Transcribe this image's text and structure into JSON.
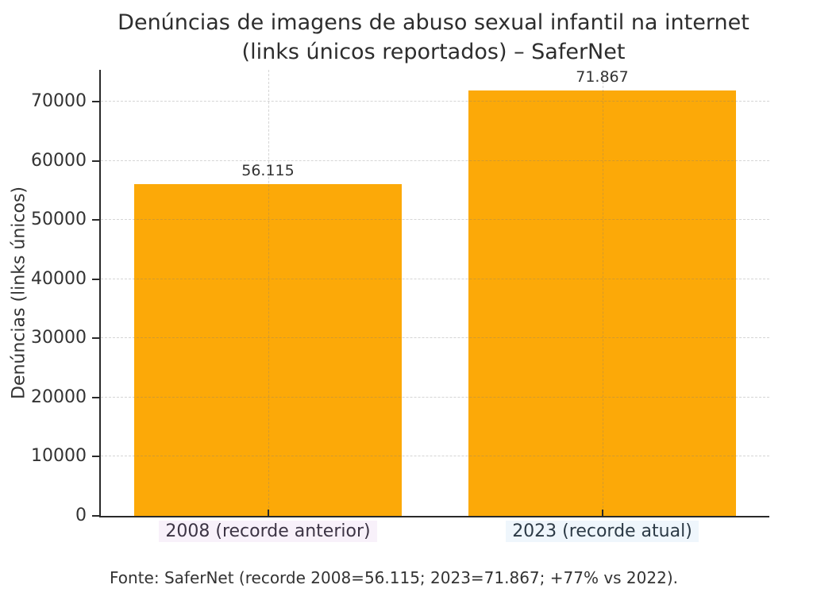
{
  "title": {
    "line1": "Denúncias de imagens de abuso sexual infantil na internet",
    "line2": "(links únicos reportados) – SaferNet"
  },
  "footer": "Fonte: SaferNet (recorde 2008=56.115; 2023=71.867; +77% vs 2022).",
  "chart_data": {
    "type": "bar",
    "title": "Denúncias de imagens de abuso sexual infantil na internet (links únicos reportados) – SaferNet",
    "categories": [
      "2008 (recorde anterior)",
      "2023 (recorde atual)"
    ],
    "values": [
      56115,
      71867
    ],
    "value_labels": [
      "56.115",
      "71.867"
    ],
    "xlabel": "",
    "ylabel": "Denúncias (links únicos)",
    "ylim": [
      0,
      75400
    ],
    "yticks": [
      0,
      10000,
      20000,
      30000,
      40000,
      50000,
      60000,
      70000
    ],
    "grid": "both, dashed, light-gray, drawn over bars",
    "legend": "none",
    "bar_color": "#FCA908",
    "bar_width_frac": 0.8,
    "axis_color": "#2a2a2a",
    "text_color": "#333333",
    "category_label_colors": [
      "#3c3444",
      "#2c3a46"
    ],
    "category_label_tints": [
      "#f8f1fa",
      "#eff6fc"
    ]
  }
}
